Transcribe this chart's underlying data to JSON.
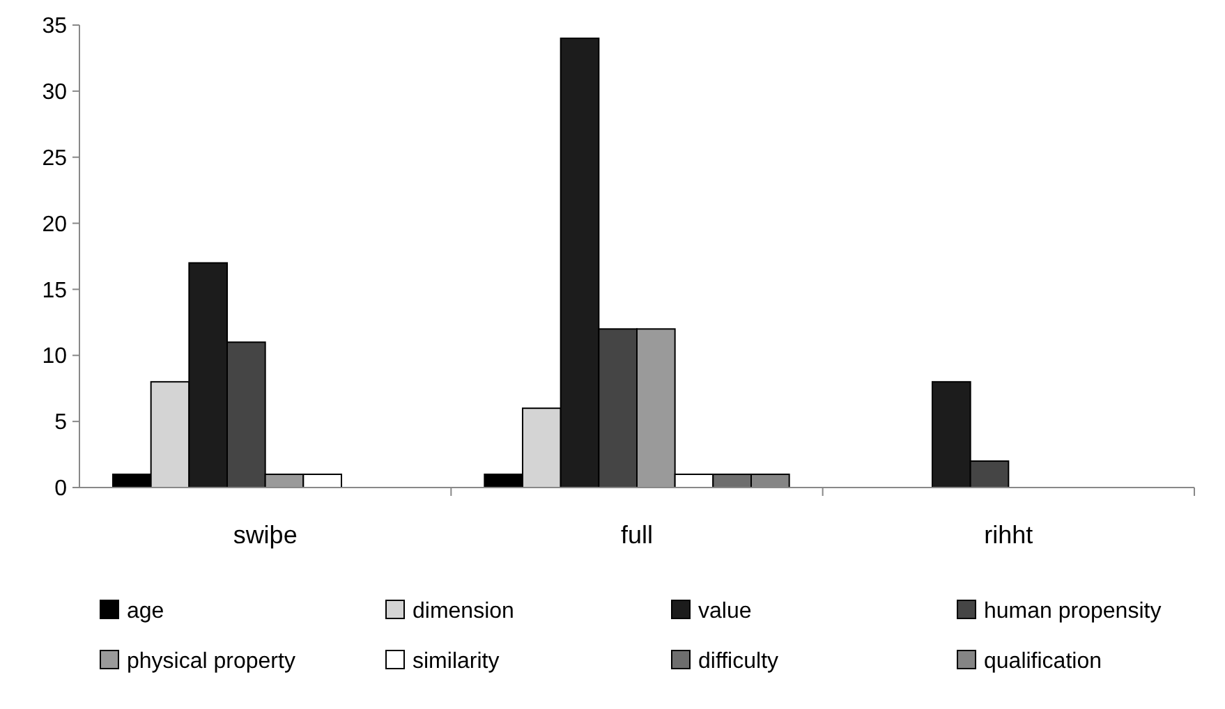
{
  "chart_data": {
    "type": "bar",
    "categories": [
      "swiþe",
      "full",
      "rihht"
    ],
    "series": [
      {
        "name": "age",
        "color": "#000000",
        "values": [
          1,
          1,
          0
        ]
      },
      {
        "name": "dimension",
        "color": "#d4d4d4",
        "values": [
          8,
          6,
          0
        ]
      },
      {
        "name": "value",
        "color": "#1c1c1c",
        "values": [
          17,
          34,
          8
        ]
      },
      {
        "name": "human propensity",
        "color": "#454545",
        "values": [
          11,
          12,
          2
        ]
      },
      {
        "name": "physical property",
        "color": "#9a9a9a",
        "values": [
          1,
          12,
          0
        ]
      },
      {
        "name": "similarity",
        "color": "#ffffff",
        "values": [
          1,
          1,
          0
        ]
      },
      {
        "name": "difficulty",
        "color": "#6e6e6e",
        "values": [
          0,
          1,
          0
        ]
      },
      {
        "name": "qualification",
        "color": "#858585",
        "values": [
          0,
          1,
          0
        ]
      }
    ],
    "ylim": [
      0,
      35
    ],
    "yticks": [
      0,
      5,
      10,
      15,
      20,
      25,
      30,
      35
    ],
    "grid": false,
    "legend": "bottom"
  }
}
